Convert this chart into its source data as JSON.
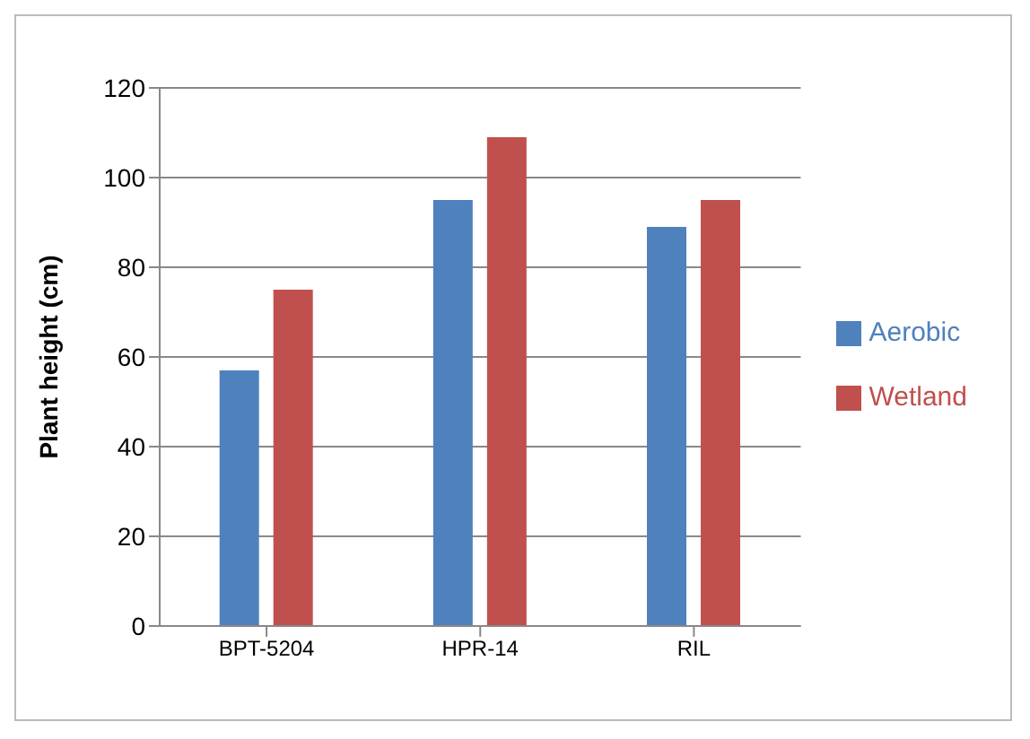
{
  "chart_data": {
    "type": "bar",
    "ylabel": "Plant height (cm)",
    "categories": [
      "BPT-5204",
      "HPR-14",
      "RIL"
    ],
    "series": [
      {
        "name": "Aerobic",
        "color": "#4f81bd",
        "values": [
          57,
          95,
          89
        ]
      },
      {
        "name": "Wetland",
        "color": "#c0504d",
        "values": [
          75,
          109,
          95
        ]
      }
    ],
    "ylim": [
      0,
      120
    ],
    "yticks": [
      0,
      20,
      40,
      60,
      80,
      100,
      120
    ],
    "grid": "y",
    "legend": "right"
  }
}
